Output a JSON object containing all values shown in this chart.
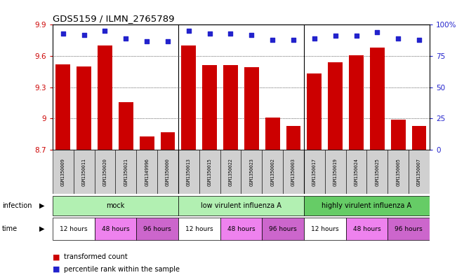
{
  "title": "GDS5159 / ILMN_2765789",
  "samples": [
    "GSM1350009",
    "GSM1350011",
    "GSM1350020",
    "GSM1350021",
    "GSM1349996",
    "GSM1350000",
    "GSM1350013",
    "GSM1350015",
    "GSM1350022",
    "GSM1350023",
    "GSM1350002",
    "GSM1350003",
    "GSM1350017",
    "GSM1350019",
    "GSM1350024",
    "GSM1350025",
    "GSM1350005",
    "GSM1350007"
  ],
  "bar_values": [
    9.52,
    9.5,
    9.7,
    9.16,
    8.83,
    8.87,
    9.7,
    9.51,
    9.51,
    9.49,
    9.01,
    8.93,
    9.43,
    9.54,
    9.61,
    9.68,
    8.99,
    8.93
  ],
  "dot_values": [
    93,
    92,
    95,
    89,
    87,
    87,
    95,
    93,
    93,
    92,
    88,
    88,
    89,
    91,
    91,
    94,
    89,
    88
  ],
  "ylim_left": [
    8.7,
    9.9
  ],
  "ylim_right": [
    0,
    100
  ],
  "yticks_left": [
    8.7,
    9.0,
    9.3,
    9.6,
    9.9
  ],
  "ytick_labels_left": [
    "8.7",
    "9",
    "9.3",
    "9.6",
    "9.9"
  ],
  "yticks_right": [
    0,
    25,
    50,
    75,
    100
  ],
  "ytick_labels_right": [
    "0",
    "25",
    "50",
    "75",
    "100%"
  ],
  "bar_color": "#cc0000",
  "dot_color": "#2222cc",
  "infection_groups": [
    {
      "label": "mock",
      "start": 0,
      "end": 6,
      "color": "#b2f0b2"
    },
    {
      "label": "low virulent influenza A",
      "start": 6,
      "end": 12,
      "color": "#b2f0b2"
    },
    {
      "label": "highly virulent influenza A",
      "start": 12,
      "end": 18,
      "color": "#66cc66"
    }
  ],
  "time_entries": [
    {
      "label": "12 hours",
      "start": 0,
      "end": 2,
      "color": "#ffffff"
    },
    {
      "label": "48 hours",
      "start": 2,
      "end": 4,
      "color": "#ee82ee"
    },
    {
      "label": "96 hours",
      "start": 4,
      "end": 6,
      "color": "#cc66cc"
    },
    {
      "label": "12 hours",
      "start": 6,
      "end": 8,
      "color": "#ffffff"
    },
    {
      "label": "48 hours",
      "start": 8,
      "end": 10,
      "color": "#ee82ee"
    },
    {
      "label": "96 hours",
      "start": 10,
      "end": 12,
      "color": "#cc66cc"
    },
    {
      "label": "12 hours",
      "start": 12,
      "end": 14,
      "color": "#ffffff"
    },
    {
      "label": "48 hours",
      "start": 14,
      "end": 16,
      "color": "#ee82ee"
    },
    {
      "label": "96 hours",
      "start": 16,
      "end": 18,
      "color": "#cc66cc"
    }
  ],
  "legend_bar_label": "transformed count",
  "legend_dot_label": "percentile rank within the sample",
  "infection_label": "infection",
  "time_label": "time",
  "label_box_color": "#d0d0d0",
  "n_samples": 18,
  "group_dividers": [
    5.5,
    11.5
  ]
}
